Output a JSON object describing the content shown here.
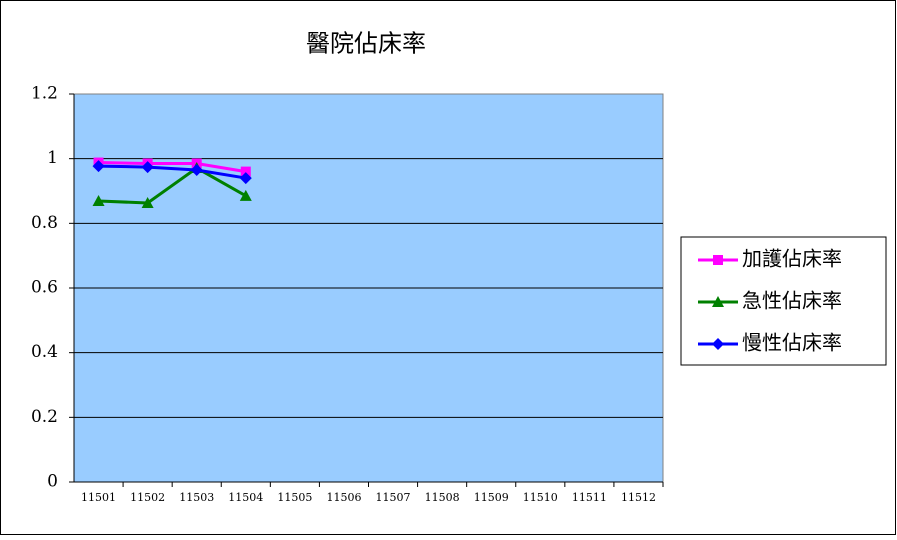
{
  "chart_data": {
    "type": "line",
    "title": "醫院佔床率",
    "categories": [
      "11501",
      "11502",
      "11503",
      "11504",
      "11505",
      "11506",
      "11507",
      "11508",
      "11509",
      "11510",
      "11511",
      "11512"
    ],
    "series": [
      {
        "name": "加護佔床率",
        "color": "#ff00ff",
        "marker": "square",
        "values": [
          0.988,
          0.985,
          0.985,
          0.96,
          null,
          null,
          null,
          null,
          null,
          null,
          null,
          null
        ]
      },
      {
        "name": "急性佔床率",
        "color": "#008000",
        "marker": "triangle",
        "values": [
          0.869,
          0.863,
          0.971,
          0.885,
          null,
          null,
          null,
          null,
          null,
          null,
          null,
          null
        ]
      },
      {
        "name": "慢性佔床率",
        "color": "#0000ff",
        "marker": "diamond",
        "values": [
          0.977,
          0.974,
          0.965,
          0.94,
          null,
          null,
          null,
          null,
          null,
          null,
          null,
          null
        ]
      }
    ],
    "ylim": [
      0,
      1.2
    ],
    "yticks": [
      0,
      0.2,
      0.4,
      0.6,
      0.8,
      1,
      1.2
    ],
    "grid": true,
    "legend": "right"
  }
}
